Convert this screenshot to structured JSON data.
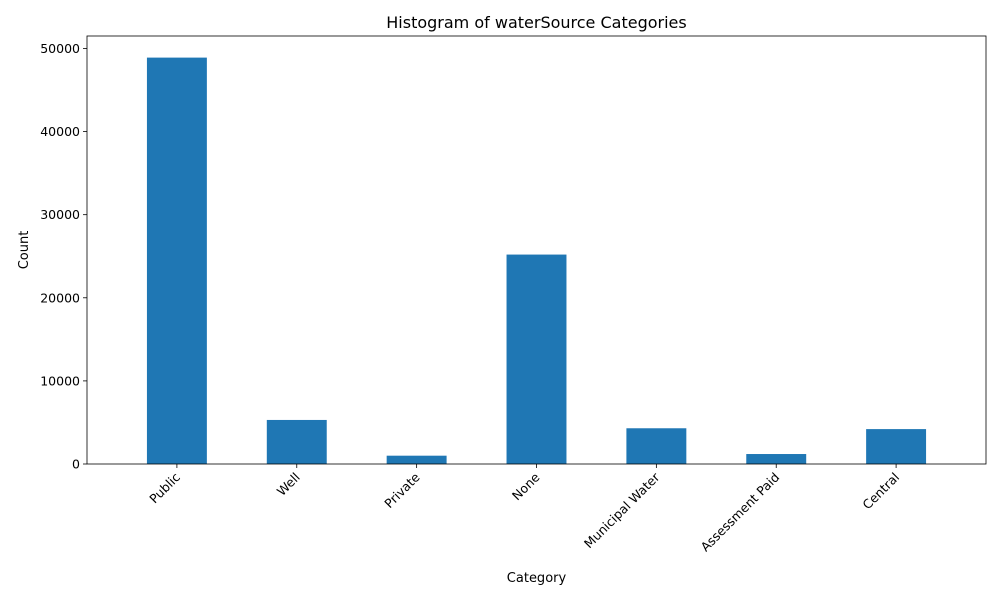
{
  "chart_data": {
    "type": "bar",
    "title": "Histogram of waterSource Categories",
    "xlabel": "Category",
    "ylabel": "Count",
    "categories": [
      "Public",
      "Well",
      "Private",
      "None",
      "Municipal Water",
      "Assessment Paid",
      "Central"
    ],
    "values": [
      48900,
      5300,
      1000,
      25200,
      4300,
      1200,
      4200
    ],
    "ylim": [
      0,
      51500
    ],
    "yticks": [
      0,
      10000,
      20000,
      30000,
      40000,
      50000
    ],
    "grid": false,
    "legend": "none",
    "bar_color": "#1f77b4"
  }
}
